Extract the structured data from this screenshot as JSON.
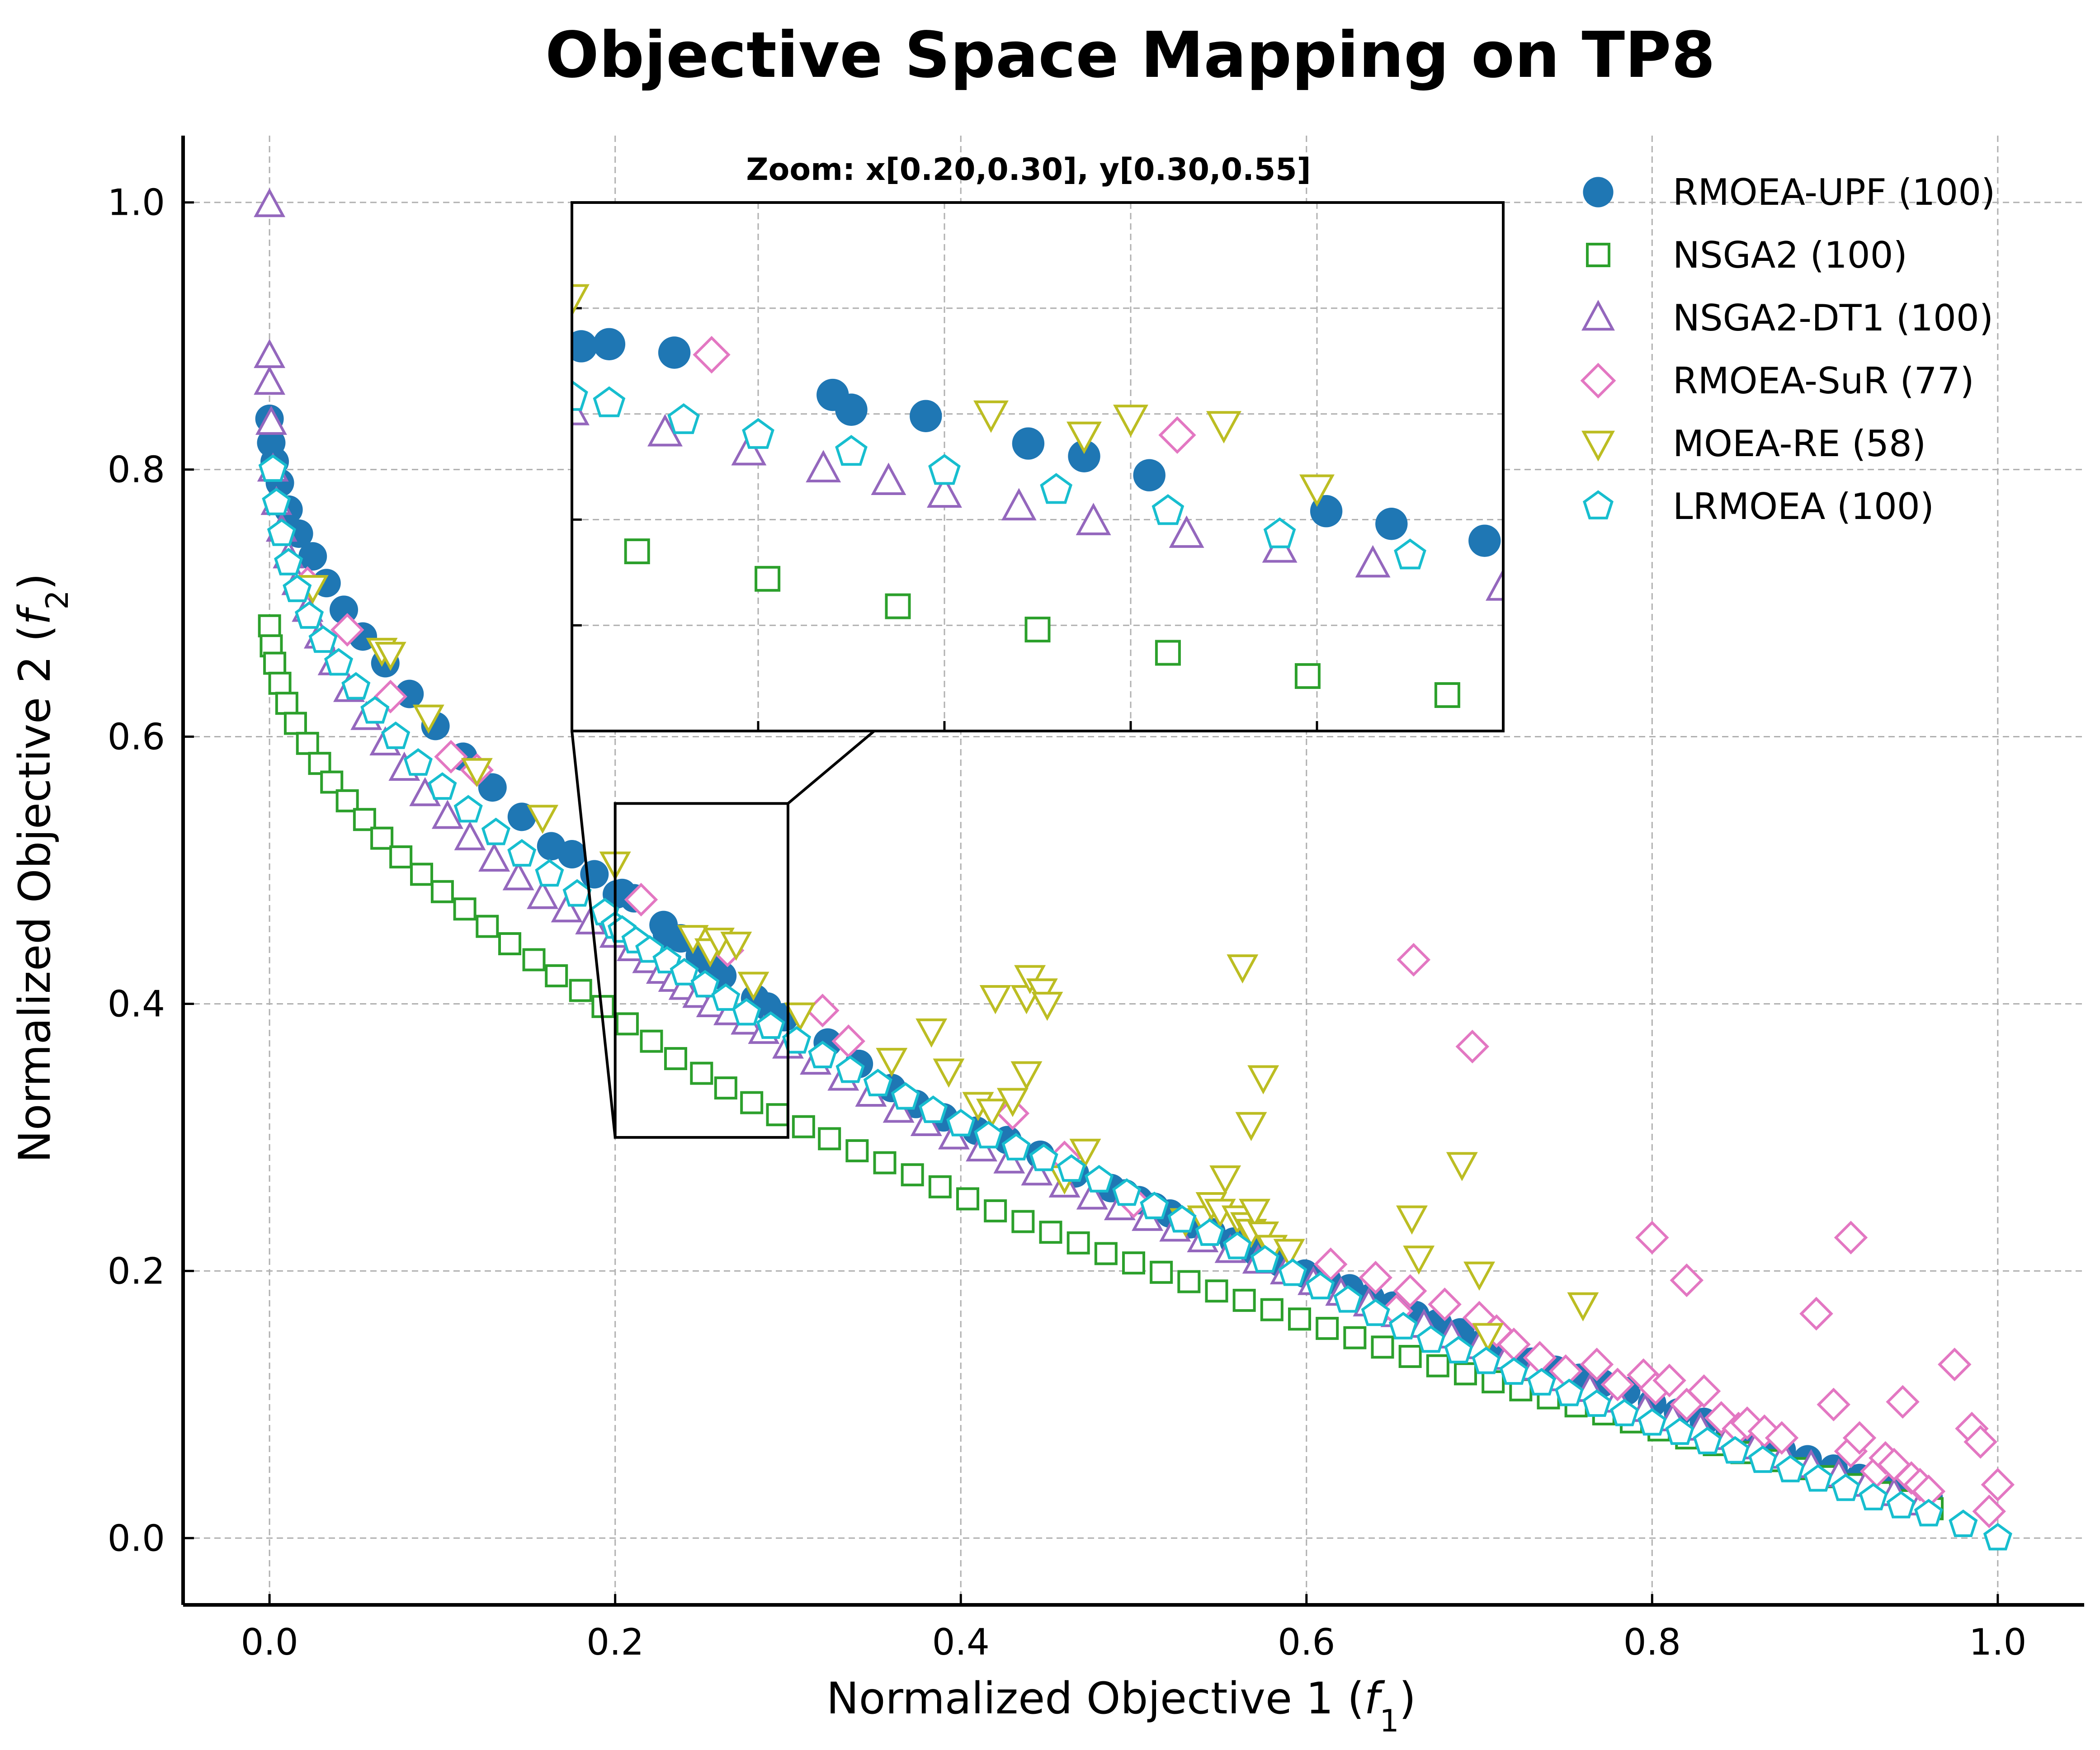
{
  "chart_data": {
    "type": "scatter",
    "title": "Objective Space Mapping on TP8",
    "xlabel": "Normalized Objective 1 (",
    "xlabel_var": "f",
    "xlabel_sub": "1",
    "xlabel_close": ")",
    "ylabel": "Normalized Objective 2 (",
    "ylabel_var": "f",
    "ylabel_sub": "2",
    "ylabel_close": ")",
    "xlim": [
      -0.05,
      1.05
    ],
    "ylim": [
      -0.05,
      1.05
    ],
    "xticks": [
      0.0,
      0.2,
      0.4,
      0.6,
      0.8,
      1.0
    ],
    "yticks": [
      0.0,
      0.2,
      0.4,
      0.6,
      0.8,
      1.0
    ],
    "xtick_labels": [
      "0.0",
      "0.2",
      "0.4",
      "0.6",
      "0.8",
      "1.0"
    ],
    "ytick_labels": [
      "0.0",
      "0.2",
      "0.4",
      "0.6",
      "0.8",
      "1.0"
    ],
    "grid": true,
    "legend_position": "top-right",
    "inset": {
      "title": "Zoom: x[0.20,0.30], y[0.30,0.55]",
      "xlim": [
        0.2,
        0.3
      ],
      "ylim": [
        0.3,
        0.55
      ]
    },
    "series": [
      {
        "name": "RMOEA-UPF",
        "legend": "RMOEA-UPF (100)",
        "marker": "circle",
        "filled": true,
        "color": "#1f77b4",
        "x": [
          0.0,
          0.001,
          0.003,
          0.006,
          0.011,
          0.017,
          0.025,
          0.033,
          0.043,
          0.054,
          0.067,
          0.081,
          0.096,
          0.112,
          0.129,
          0.146,
          0.163,
          0.175,
          0.188,
          0.201,
          0.204,
          0.211,
          0.228,
          0.23,
          0.238,
          0.249,
          0.255,
          0.262,
          0.281,
          0.288,
          0.298,
          0.323,
          0.341,
          0.36,
          0.374,
          0.39,
          0.409,
          0.427,
          0.446,
          0.466,
          0.487,
          0.495,
          0.503,
          0.512,
          0.521,
          0.533,
          0.545,
          0.558,
          0.571,
          0.585,
          0.599,
          0.612,
          0.625,
          0.637,
          0.65,
          0.663,
          0.676,
          0.689,
          0.702,
          0.716,
          0.73,
          0.744,
          0.758,
          0.771,
          0.785,
          0.8,
          0.815,
          0.83,
          0.845,
          0.86,
          0.875,
          0.89,
          0.905,
          0.92,
          0.935,
          0.948,
          0.96
        ],
        "y": [
          0.838,
          0.82,
          0.806,
          0.79,
          0.77,
          0.752,
          0.735,
          0.715,
          0.695,
          0.675,
          0.655,
          0.632,
          0.608,
          0.585,
          0.562,
          0.54,
          0.518,
          0.512,
          0.497,
          0.482,
          0.483,
          0.479,
          0.459,
          0.452,
          0.449,
          0.436,
          0.43,
          0.421,
          0.404,
          0.398,
          0.39,
          0.371,
          0.355,
          0.337,
          0.325,
          0.315,
          0.305,
          0.298,
          0.287,
          0.273,
          0.262,
          0.258,
          0.253,
          0.248,
          0.243,
          0.235,
          0.229,
          0.222,
          0.214,
          0.206,
          0.198,
          0.193,
          0.187,
          0.18,
          0.174,
          0.167,
          0.161,
          0.154,
          0.146,
          0.139,
          0.132,
          0.126,
          0.12,
          0.116,
          0.11,
          0.101,
          0.094,
          0.087,
          0.08,
          0.073,
          0.066,
          0.059,
          0.052,
          0.045,
          0.039,
          0.034,
          0.03
        ]
      },
      {
        "name": "NSGA2",
        "legend": "NSGA2 (100)",
        "marker": "square",
        "filled": false,
        "color": "#2ca02c",
        "x": [
          0.0,
          0.001,
          0.003,
          0.006,
          0.01,
          0.015,
          0.022,
          0.029,
          0.036,
          0.045,
          0.055,
          0.065,
          0.076,
          0.088,
          0.1,
          0.113,
          0.126,
          0.139,
          0.153,
          0.166,
          0.18,
          0.193,
          0.207,
          0.221,
          0.235,
          0.25,
          0.264,
          0.279,
          0.294,
          0.309,
          0.324,
          0.34,
          0.356,
          0.372,
          0.388,
          0.404,
          0.42,
          0.436,
          0.452,
          0.468,
          0.484,
          0.5,
          0.516,
          0.532,
          0.548,
          0.564,
          0.58,
          0.596,
          0.612,
          0.628,
          0.644,
          0.66,
          0.676,
          0.692,
          0.708,
          0.724,
          0.74,
          0.756,
          0.772,
          0.788,
          0.804,
          0.82,
          0.836,
          0.852,
          0.868,
          0.884,
          0.9,
          0.916,
          0.932,
          0.948,
          0.962
        ],
        "y": [
          0.683,
          0.668,
          0.655,
          0.64,
          0.625,
          0.61,
          0.595,
          0.58,
          0.566,
          0.552,
          0.538,
          0.524,
          0.51,
          0.497,
          0.484,
          0.471,
          0.458,
          0.445,
          0.433,
          0.421,
          0.41,
          0.398,
          0.385,
          0.372,
          0.359,
          0.348,
          0.337,
          0.326,
          0.317,
          0.308,
          0.299,
          0.29,
          0.281,
          0.272,
          0.263,
          0.254,
          0.245,
          0.237,
          0.229,
          0.221,
          0.213,
          0.206,
          0.199,
          0.192,
          0.185,
          0.178,
          0.171,
          0.164,
          0.157,
          0.15,
          0.143,
          0.136,
          0.129,
          0.123,
          0.117,
          0.111,
          0.105,
          0.099,
          0.093,
          0.087,
          0.081,
          0.075,
          0.07,
          0.064,
          0.058,
          0.052,
          0.046,
          0.04,
          0.034,
          0.028,
          0.022
        ]
      },
      {
        "name": "NSGA2-DT1",
        "legend": "NSGA2-DT1 (100)",
        "marker": "triangle-up",
        "filled": false,
        "color": "#9467bd",
        "x": [
          0.0,
          0.0,
          0.0,
          0.001,
          0.002,
          0.004,
          0.007,
          0.011,
          0.016,
          0.022,
          0.029,
          0.037,
          0.046,
          0.056,
          0.067,
          0.078,
          0.09,
          0.103,
          0.116,
          0.13,
          0.144,
          0.158,
          0.172,
          0.186,
          0.2,
          0.21,
          0.219,
          0.227,
          0.234,
          0.24,
          0.248,
          0.256,
          0.266,
          0.276,
          0.286,
          0.3,
          0.316,
          0.332,
          0.348,
          0.364,
          0.38,
          0.396,
          0.412,
          0.428,
          0.444,
          0.46,
          0.476,
          0.492,
          0.508,
          0.524,
          0.54,
          0.556,
          0.572,
          0.588,
          0.604,
          0.62,
          0.636,
          0.652,
          0.668,
          0.684,
          0.7,
          0.716,
          0.732,
          0.748,
          0.764,
          0.78,
          0.796,
          0.812,
          0.828,
          0.844,
          0.86,
          0.876,
          0.892,
          0.908,
          0.924,
          0.94,
          0.956
        ],
        "y": [
          0.998,
          0.885,
          0.865,
          0.835,
          0.8,
          0.775,
          0.755,
          0.735,
          0.715,
          0.695,
          0.675,
          0.655,
          0.635,
          0.614,
          0.595,
          0.576,
          0.557,
          0.54,
          0.524,
          0.508,
          0.494,
          0.48,
          0.47,
          0.461,
          0.451,
          0.441,
          0.432,
          0.424,
          0.418,
          0.412,
          0.406,
          0.399,
          0.393,
          0.386,
          0.379,
          0.368,
          0.356,
          0.344,
          0.332,
          0.32,
          0.31,
          0.3,
          0.291,
          0.282,
          0.273,
          0.264,
          0.255,
          0.247,
          0.239,
          0.231,
          0.223,
          0.215,
          0.207,
          0.199,
          0.191,
          0.183,
          0.175,
          0.167,
          0.159,
          0.151,
          0.143,
          0.135,
          0.127,
          0.119,
          0.111,
          0.103,
          0.096,
          0.089,
          0.082,
          0.075,
          0.068,
          0.061,
          0.054,
          0.047,
          0.04,
          0.033,
          0.026
        ]
      },
      {
        "name": "RMOEA-SuR",
        "legend": "RMOEA-SuR (77)",
        "marker": "diamond",
        "filled": false,
        "color": "#e377c2",
        "x": [
          0.022,
          0.045,
          0.07,
          0.105,
          0.12,
          0.215,
          0.265,
          0.32,
          0.335,
          0.43,
          0.46,
          0.5,
          0.614,
          0.64,
          0.66,
          0.68,
          0.7,
          0.71,
          0.72,
          0.735,
          0.75,
          0.768,
          0.78,
          0.795,
          0.802,
          0.81,
          0.82,
          0.83,
          0.84,
          0.85,
          0.855,
          0.865,
          0.875,
          0.895,
          0.905,
          0.915,
          0.92,
          0.93,
          0.935,
          0.94,
          0.945,
          0.95,
          0.955,
          0.96,
          0.975,
          0.985,
          0.99,
          0.995,
          1.0,
          0.8,
          0.82,
          0.895,
          0.915,
          0.662,
          0.696,
          0.652
        ],
        "y": [
          0.715,
          0.68,
          0.63,
          0.585,
          0.575,
          0.478,
          0.44,
          0.395,
          0.372,
          0.318,
          0.285,
          0.252,
          0.205,
          0.195,
          0.185,
          0.175,
          0.165,
          0.155,
          0.145,
          0.135,
          0.125,
          0.13,
          0.115,
          0.122,
          0.112,
          0.118,
          0.1,
          0.11,
          0.09,
          0.082,
          0.086,
          0.08,
          0.075,
          0.168,
          0.1,
          0.065,
          0.075,
          0.05,
          0.06,
          0.055,
          0.102,
          0.045,
          0.04,
          0.035,
          0.13,
          0.082,
          0.072,
          0.02,
          0.04,
          0.225,
          0.193,
          0.168,
          0.225,
          0.433,
          0.368,
          0.17
        ]
      },
      {
        "name": "MOEA-RE",
        "legend": "MOEA-RE (58)",
        "marker": "triangle-down",
        "filled": false,
        "color": "#bcbd22",
        "x": [
          0.025,
          0.065,
          0.07,
          0.092,
          0.12,
          0.158,
          0.2,
          0.245,
          0.255,
          0.26,
          0.27,
          0.28,
          0.307,
          0.36,
          0.383,
          0.393,
          0.41,
          0.418,
          0.43,
          0.438,
          0.44,
          0.447,
          0.45,
          0.46,
          0.472,
          0.53,
          0.54,
          0.545,
          0.55,
          0.553,
          0.56,
          0.565,
          0.568,
          0.57,
          0.575,
          0.58,
          0.59,
          0.563,
          0.568,
          0.575,
          0.661,
          0.665,
          0.69,
          0.7,
          0.705,
          0.76,
          0.42,
          0.438
        ],
        "y": [
          0.712,
          0.665,
          0.662,
          0.615,
          0.575,
          0.54,
          0.505,
          0.45,
          0.44,
          0.448,
          0.445,
          0.415,
          0.392,
          0.358,
          0.38,
          0.35,
          0.325,
          0.32,
          0.328,
          0.405,
          0.42,
          0.41,
          0.4,
          0.27,
          0.29,
          0.238,
          0.24,
          0.25,
          0.245,
          0.27,
          0.24,
          0.235,
          0.23,
          0.245,
          0.228,
          0.218,
          0.215,
          0.428,
          0.31,
          0.345,
          0.24,
          0.21,
          0.28,
          0.198,
          0.152,
          0.175,
          0.405,
          0.348
        ]
      },
      {
        "name": "LRMOEA",
        "legend": "LRMOEA (100)",
        "marker": "pentagon",
        "filled": false,
        "color": "#17becf",
        "x": [
          0.002,
          0.004,
          0.007,
          0.011,
          0.016,
          0.023,
          0.031,
          0.04,
          0.05,
          0.061,
          0.073,
          0.086,
          0.1,
          0.115,
          0.131,
          0.146,
          0.162,
          0.178,
          0.194,
          0.2,
          0.204,
          0.212,
          0.22,
          0.23,
          0.24,
          0.252,
          0.264,
          0.276,
          0.29,
          0.305,
          0.32,
          0.336,
          0.352,
          0.368,
          0.384,
          0.4,
          0.416,
          0.432,
          0.448,
          0.464,
          0.48,
          0.496,
          0.512,
          0.528,
          0.544,
          0.56,
          0.576,
          0.592,
          0.608,
          0.624,
          0.64,
          0.656,
          0.672,
          0.688,
          0.704,
          0.72,
          0.736,
          0.752,
          0.768,
          0.784,
          0.8,
          0.816,
          0.832,
          0.848,
          0.864,
          0.88,
          0.896,
          0.912,
          0.928,
          0.944,
          0.96,
          0.98,
          1.0
        ],
        "y": [
          0.8,
          0.775,
          0.752,
          0.73,
          0.71,
          0.69,
          0.672,
          0.655,
          0.637,
          0.619,
          0.6,
          0.58,
          0.562,
          0.545,
          0.528,
          0.512,
          0.497,
          0.482,
          0.468,
          0.458,
          0.455,
          0.447,
          0.44,
          0.432,
          0.423,
          0.414,
          0.404,
          0.393,
          0.383,
          0.372,
          0.361,
          0.35,
          0.34,
          0.33,
          0.32,
          0.31,
          0.301,
          0.292,
          0.284,
          0.276,
          0.268,
          0.258,
          0.248,
          0.238,
          0.228,
          0.218,
          0.208,
          0.198,
          0.188,
          0.178,
          0.168,
          0.158,
          0.148,
          0.14,
          0.132,
          0.124,
          0.116,
          0.108,
          0.1,
          0.093,
          0.086,
          0.079,
          0.072,
          0.065,
          0.058,
          0.051,
          0.044,
          0.037,
          0.03,
          0.024,
          0.018,
          0.01,
          0.0
        ]
      }
    ]
  }
}
